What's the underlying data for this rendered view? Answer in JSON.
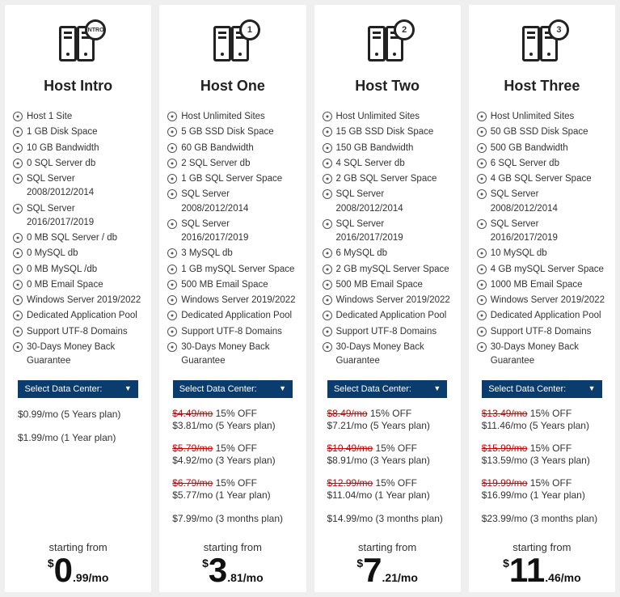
{
  "select_label": "Select Data Center:",
  "starting_from": "starting from",
  "discount_label": "15% OFF",
  "plans": [
    {
      "badge": "INTRO",
      "title": "Host Intro",
      "features": [
        "Host 1 Site",
        "1 GB Disk Space",
        "10 GB Bandwidth",
        "0 SQL Server db",
        "SQL Server 2008/2012/2014",
        "SQL Server 2016/2017/2019",
        "0 MB SQL Server / db",
        "0 MySQL db",
        "0 MB MySQL /db",
        "0 MB Email Space",
        "Windows Server 2019/2022",
        "Dedicated Application Pool",
        "Support UTF-8 Domains",
        "30-Days Money Back Guarantee"
      ],
      "prices": [
        {
          "old": "",
          "new": "$0.99/mo (5 Years plan)"
        },
        {
          "old": "",
          "new": "$1.99/mo (1 Year plan)"
        }
      ],
      "big_main": "0",
      "big_rest": ".99/mo"
    },
    {
      "badge": "1",
      "title": "Host One",
      "features": [
        "Host Unlimited Sites",
        "5 GB SSD Disk Space",
        "60 GB Bandwidth",
        "2 SQL Server db",
        "1 GB SQL Server Space",
        "SQL Server 2008/2012/2014",
        "SQL Server 2016/2017/2019",
        "3 MySQL db",
        "1 GB mySQL Server Space",
        "500 MB Email Space",
        "Windows Server 2019/2022",
        "Dedicated Application Pool",
        "Support UTF-8 Domains",
        "30-Days Money Back Guarantee"
      ],
      "prices": [
        {
          "old": "$4.49/mo",
          "new": "$3.81/mo (5 Years plan)"
        },
        {
          "old": "$5.79/mo",
          "new": "$4.92/mo (3 Years plan)"
        },
        {
          "old": "$6.79/mo",
          "new": "$5.77/mo (1 Year plan)"
        },
        {
          "old": "",
          "new": "$7.99/mo (3 months plan)"
        }
      ],
      "big_main": "3",
      "big_rest": ".81/mo"
    },
    {
      "badge": "2",
      "title": "Host Two",
      "features": [
        "Host Unlimited Sites",
        "15 GB SSD Disk Space",
        "150 GB Bandwidth",
        "4 SQL Server db",
        "2 GB SQL Server Space",
        "SQL Server 2008/2012/2014",
        "SQL Server 2016/2017/2019",
        "6 MySQL db",
        "2 GB mySQL Server Space",
        "500 MB Email Space",
        "Windows Server 2019/2022",
        "Dedicated Application Pool",
        "Support UTF-8 Domains",
        "30-Days Money Back Guarantee"
      ],
      "prices": [
        {
          "old": "$8.49/mo",
          "new": "$7.21/mo (5 Years plan)"
        },
        {
          "old": "$10.49/mo",
          "new": "$8.91/mo (3 Years plan)"
        },
        {
          "old": "$12.99/mo",
          "new": "$11.04/mo (1 Year plan)"
        },
        {
          "old": "",
          "new": "$14.99/mo (3 months plan)"
        }
      ],
      "big_main": "7",
      "big_rest": ".21/mo"
    },
    {
      "badge": "3",
      "title": "Host Three",
      "features": [
        "Host Unlimited Sites",
        "50 GB SSD Disk Space",
        "500 GB Bandwidth",
        "6 SQL Server db",
        "4 GB SQL Server Space",
        "SQL Server 2008/2012/2014",
        "SQL Server 2016/2017/2019",
        "10 MySQL db",
        "4 GB mySQL Server Space",
        "1000 MB Email Space",
        "Windows Server 2019/2022",
        "Dedicated Application Pool",
        "Support UTF-8 Domains",
        "30-Days Money Back Guarantee"
      ],
      "prices": [
        {
          "old": "$13.49/mo",
          "new": "$11.46/mo (5 Years plan)"
        },
        {
          "old": "$15.99/mo",
          "new": "$13.59/mo (3 Years plan)"
        },
        {
          "old": "$19.99/mo",
          "new": "$16.99/mo (1 Year plan)"
        },
        {
          "old": "",
          "new": "$23.99/mo (3 months plan)"
        }
      ],
      "big_main": "11",
      "big_rest": ".46/mo"
    }
  ]
}
